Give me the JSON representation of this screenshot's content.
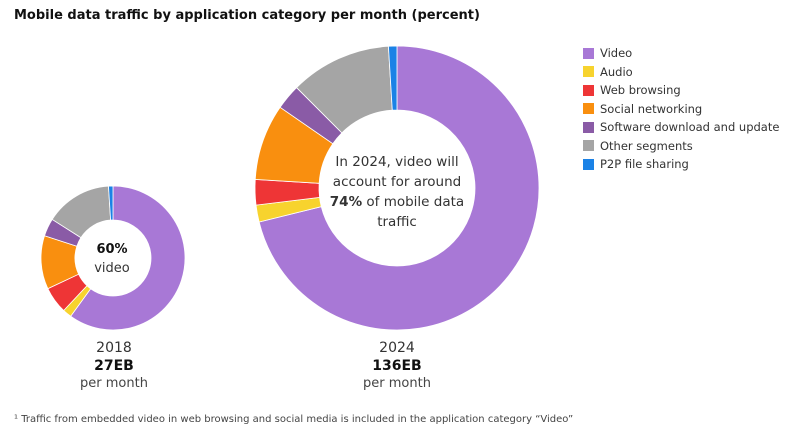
{
  "title": "Mobile data traffic by application category per month (percent)",
  "footnote": "¹ Traffic from embedded video in web browsing and social media is included in the application category “Video”",
  "chart_data": {
    "type": "pie",
    "categories": [
      "Video",
      "Audio",
      "Web browsing",
      "Social networking",
      "Software download and update",
      "Other segments",
      "P2P file sharing"
    ],
    "colors": [
      "#a878d6",
      "#f7d32e",
      "#ee3536",
      "#f98f0f",
      "#8a5ba6",
      "#a5a5a5",
      "#1b82e6"
    ],
    "legend_position": "right",
    "charts": [
      {
        "year": "2018",
        "volume": "27EB",
        "unit": "per month",
        "center_pct": "60%",
        "center_label": "video",
        "values": [
          60,
          2,
          6,
          12,
          4,
          15,
          1
        ]
      },
      {
        "year": "2024",
        "volume": "136EB",
        "unit": "per month",
        "center_pre": "In 2024, video will account for around ",
        "center_pct": "74%",
        "center_post": " of mobile data traffic",
        "values": [
          74,
          2,
          3,
          9,
          3,
          12,
          1
        ]
      }
    ]
  }
}
